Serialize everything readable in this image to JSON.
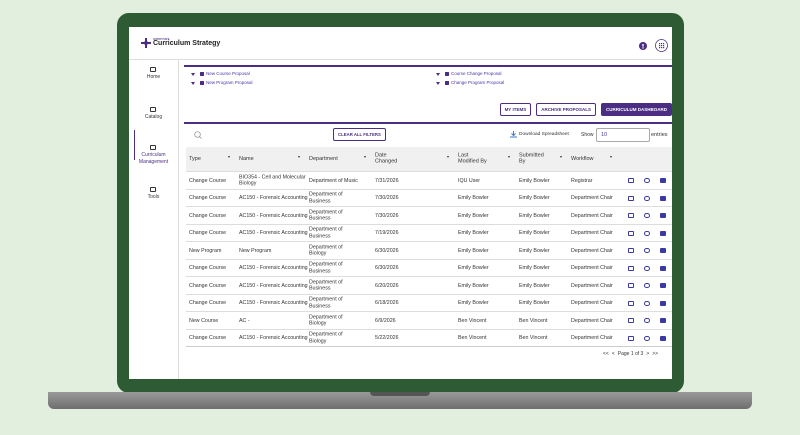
{
  "header": {
    "brand": "watermark",
    "title": "Curriculum Strategy"
  },
  "sidebar": [
    "Home",
    "Catalog",
    "Curriculum Management",
    "Tools"
  ],
  "filters": [
    "New Course Proposal",
    "New Program Proposal",
    "Course Change Proposal",
    "Change Program Proposal"
  ],
  "buttons": [
    "MY ITEMS",
    "ARCHIVE PROPOSALS",
    "CURRICULUM DASHBOARD"
  ],
  "toolbar": {
    "clear": "CLEAR ALL FILTERS",
    "download": "Download Spreadsheet",
    "show": "Show",
    "count": "10",
    "entries": "entries"
  },
  "table": {
    "columns": [
      "Type",
      "Name",
      "Department",
      "Date Changed",
      "Last Modified By",
      "Submitted By",
      "Workflow"
    ],
    "rows": [
      [
        "Change Course",
        "BIO354 - Cell and Molecular Biology",
        "Department of Music",
        "7/31/2026",
        "IQU User",
        "Emily Bowler",
        "Registrar"
      ],
      [
        "Change Course",
        "AC150 - Forensic Accounting",
        "Department of Business",
        "7/30/2026",
        "Emily Bowler",
        "Emily Bowler",
        "Department Chair"
      ],
      [
        "Change Course",
        "AC150 - Forensic Accounting",
        "Department of Business",
        "7/30/2026",
        "Emily Bowler",
        "Emily Bowler",
        "Department Chair"
      ],
      [
        "Change Course",
        "AC150 - Forensic Accounting",
        "Department of Business",
        "7/19/2026",
        "Emily Bowler",
        "Emily Bowler",
        "Department Chair"
      ],
      [
        "New Program",
        "New Program",
        "Department of Biology",
        "6/30/2026",
        "Emily Bowler",
        "Emily Bowler",
        "Department Chair"
      ],
      [
        "Change Course",
        "AC150 - Forensic Accounting",
        "Department of Business",
        "6/30/2026",
        "Emily Bowler",
        "Emily Bowler",
        "Department Chair"
      ],
      [
        "Change Course",
        "AC150 - Forensic Accounting",
        "Department of Business",
        "6/20/2026",
        "Emily Bowler",
        "Emily Bowler",
        "Department Chair"
      ],
      [
        "Change Course",
        "AC150 - Forensic Accounting",
        "Department of Business",
        "6/18/2026",
        "Emily Bowler",
        "Emily Bowler",
        "Department Chair"
      ],
      [
        "New Course",
        "AC -",
        "Department of Biology",
        "6/9/2026",
        "Ben Vincent",
        "Ben Vincent",
        "Department Chair"
      ],
      [
        "Change Course",
        "AC150 - Forensic Accounting",
        "Department of Biology",
        "5/22/2026",
        "Ben Vincent",
        "Ben Vincent",
        "Department Chair"
      ]
    ]
  },
  "pagination": {
    "first": "<<",
    "prev": "<",
    "label": "Page 1 of 3",
    "next": ">",
    "last": ">>"
  }
}
